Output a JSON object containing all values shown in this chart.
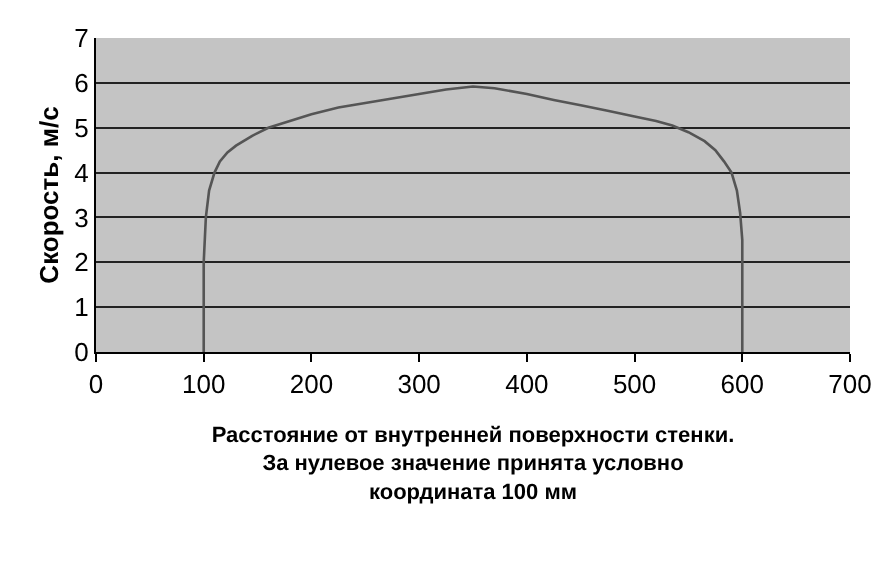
{
  "chart_data": {
    "type": "line",
    "xlabel": "Расстояние от внутренней поверхности стенки.\nЗа нулевое значение принята условно\nкоордината 100 мм",
    "ylabel": "Скорость, м/с",
    "x": [
      100,
      100,
      102,
      105,
      110,
      115,
      122,
      130,
      145,
      160,
      180,
      200,
      225,
      250,
      275,
      300,
      325,
      350,
      370,
      400,
      425,
      450,
      475,
      500,
      520,
      535,
      550,
      565,
      575,
      583,
      590,
      595,
      598,
      600,
      600
    ],
    "series": [
      {
        "color": "#555555",
        "values": [
          0,
          2,
          3,
          3.6,
          4.0,
          4.25,
          4.45,
          4.6,
          4.82,
          5.0,
          5.15,
          5.3,
          5.45,
          5.55,
          5.65,
          5.75,
          5.85,
          5.92,
          5.88,
          5.75,
          5.62,
          5.5,
          5.38,
          5.25,
          5.15,
          5.05,
          4.9,
          4.7,
          4.5,
          4.25,
          4.0,
          3.6,
          3.1,
          2.5,
          0
        ]
      }
    ],
    "xlim": [
      0,
      700
    ],
    "ylim": [
      0,
      7
    ],
    "xticks": [
      0,
      100,
      200,
      300,
      400,
      500,
      600,
      700
    ],
    "yticks": [
      0,
      1,
      2,
      3,
      4,
      5,
      6,
      7
    ],
    "grid": "y",
    "marker": "none",
    "line_style": "solid",
    "legend": false
  }
}
